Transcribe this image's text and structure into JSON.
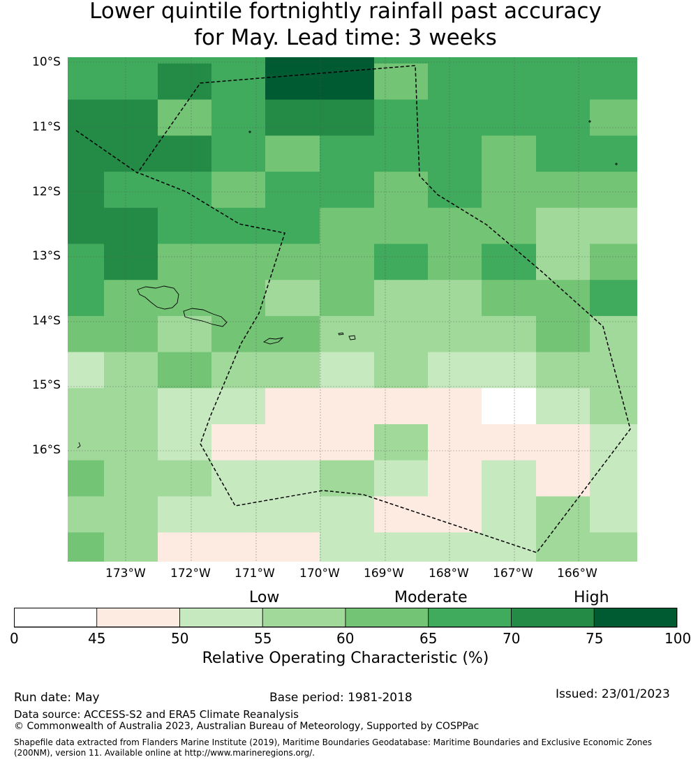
{
  "title": {
    "line1": "Lower quintile fortnightly rainfall past accuracy",
    "line2": "for May. Lead time: 3 weeks"
  },
  "map": {
    "lat_labels": [
      "10°S",
      "11°S",
      "12°S",
      "13°S",
      "14°S",
      "15°S",
      "16°S"
    ],
    "lon_labels": [
      "173°W",
      "172°W",
      "171°W",
      "170°W",
      "169°W",
      "168°W",
      "167°W",
      "166°W"
    ],
    "grid_roc_percent": [
      [
        67.5,
        67.5,
        67.5,
        67.5,
        77.5,
        77.5,
        67.5,
        67.5,
        67.5,
        67.5,
        67.5
      ],
      [
        67.5,
        67.5,
        72.5,
        67.5,
        77.5,
        77.5,
        62.5,
        67.5,
        67.5,
        67.5,
        67.5
      ],
      [
        72.5,
        72.5,
        62.5,
        67.5,
        72.5,
        72.5,
        67.5,
        67.5,
        67.5,
        67.5,
        62.5
      ],
      [
        72.5,
        72.5,
        72.5,
        67.5,
        62.5,
        67.5,
        67.5,
        67.5,
        62.5,
        67.5,
        67.5
      ],
      [
        72.5,
        67.5,
        67.5,
        62.5,
        67.5,
        67.5,
        62.5,
        67.5,
        62.5,
        62.5,
        62.5
      ],
      [
        72.5,
        72.5,
        67.5,
        67.5,
        67.5,
        62.5,
        62.5,
        62.5,
        62.5,
        57.5,
        57.5
      ],
      [
        67.5,
        72.5,
        62.5,
        62.5,
        62.5,
        62.5,
        67.5,
        62.5,
        67.5,
        57.5,
        62.5
      ],
      [
        67.5,
        62.5,
        62.5,
        62.5,
        57.5,
        62.5,
        57.5,
        57.5,
        62.5,
        62.5,
        67.5
      ],
      [
        62.5,
        62.5,
        57.5,
        62.5,
        62.5,
        57.5,
        57.5,
        57.5,
        57.5,
        62.5,
        57.5
      ],
      [
        52.5,
        57.5,
        62.5,
        57.5,
        57.5,
        52.5,
        57.5,
        52.5,
        52.5,
        57.5,
        57.5
      ],
      [
        57.5,
        57.5,
        52.5,
        52.5,
        47.5,
        47.5,
        47.5,
        47.5,
        40.0,
        52.5,
        57.5
      ],
      [
        57.5,
        57.5,
        52.5,
        47.5,
        47.5,
        47.5,
        57.5,
        47.5,
        47.5,
        47.5,
        52.5
      ],
      [
        62.5,
        57.5,
        57.5,
        52.5,
        52.5,
        57.5,
        52.5,
        47.5,
        52.5,
        47.5,
        52.5
      ],
      [
        57.5,
        57.5,
        52.5,
        52.5,
        52.5,
        52.5,
        47.5,
        47.5,
        52.5,
        57.5,
        52.5
      ],
      [
        62.5,
        57.5,
        47.5,
        47.5,
        47.5,
        52.5,
        52.5,
        52.5,
        52.5,
        57.5,
        57.5
      ]
    ]
  },
  "legend": {
    "category_labels": [
      "Low",
      "Moderate",
      "High"
    ],
    "tick_labels": [
      "0",
      "45",
      "50",
      "55",
      "60",
      "65",
      "70",
      "75",
      "100"
    ],
    "bin_edges": [
      0,
      45,
      50,
      55,
      60,
      65,
      70,
      75,
      100
    ],
    "colors": [
      "#ffffff",
      "#fdebe1",
      "#c7e9c0",
      "#a1d99b",
      "#74c476",
      "#41ab5d",
      "#238b45",
      "#005a32"
    ],
    "axis_label": "Relative Operating Characteristic (%)"
  },
  "footer": {
    "run_date": "Run date: May",
    "base_period": "Base period: 1981-2018",
    "issued": "Issued: 23/01/2023",
    "data_source": "Data source: ACCESS-S2 and ERA5 Climate Reanalysis",
    "copyright": "© Commonwealth of Australia 2023, Australian Bureau of Meteorology, Supported by COSPPac",
    "shapefile_line1": "Shapefile data extracted from Flanders Marine Institute (2019), Maritime Boundaries Geodatabase: Maritime Boundaries and Exclusive Economic Zones",
    "shapefile_line2": "(200NM), version 11. Available online at http://www.marineregions.org/."
  }
}
